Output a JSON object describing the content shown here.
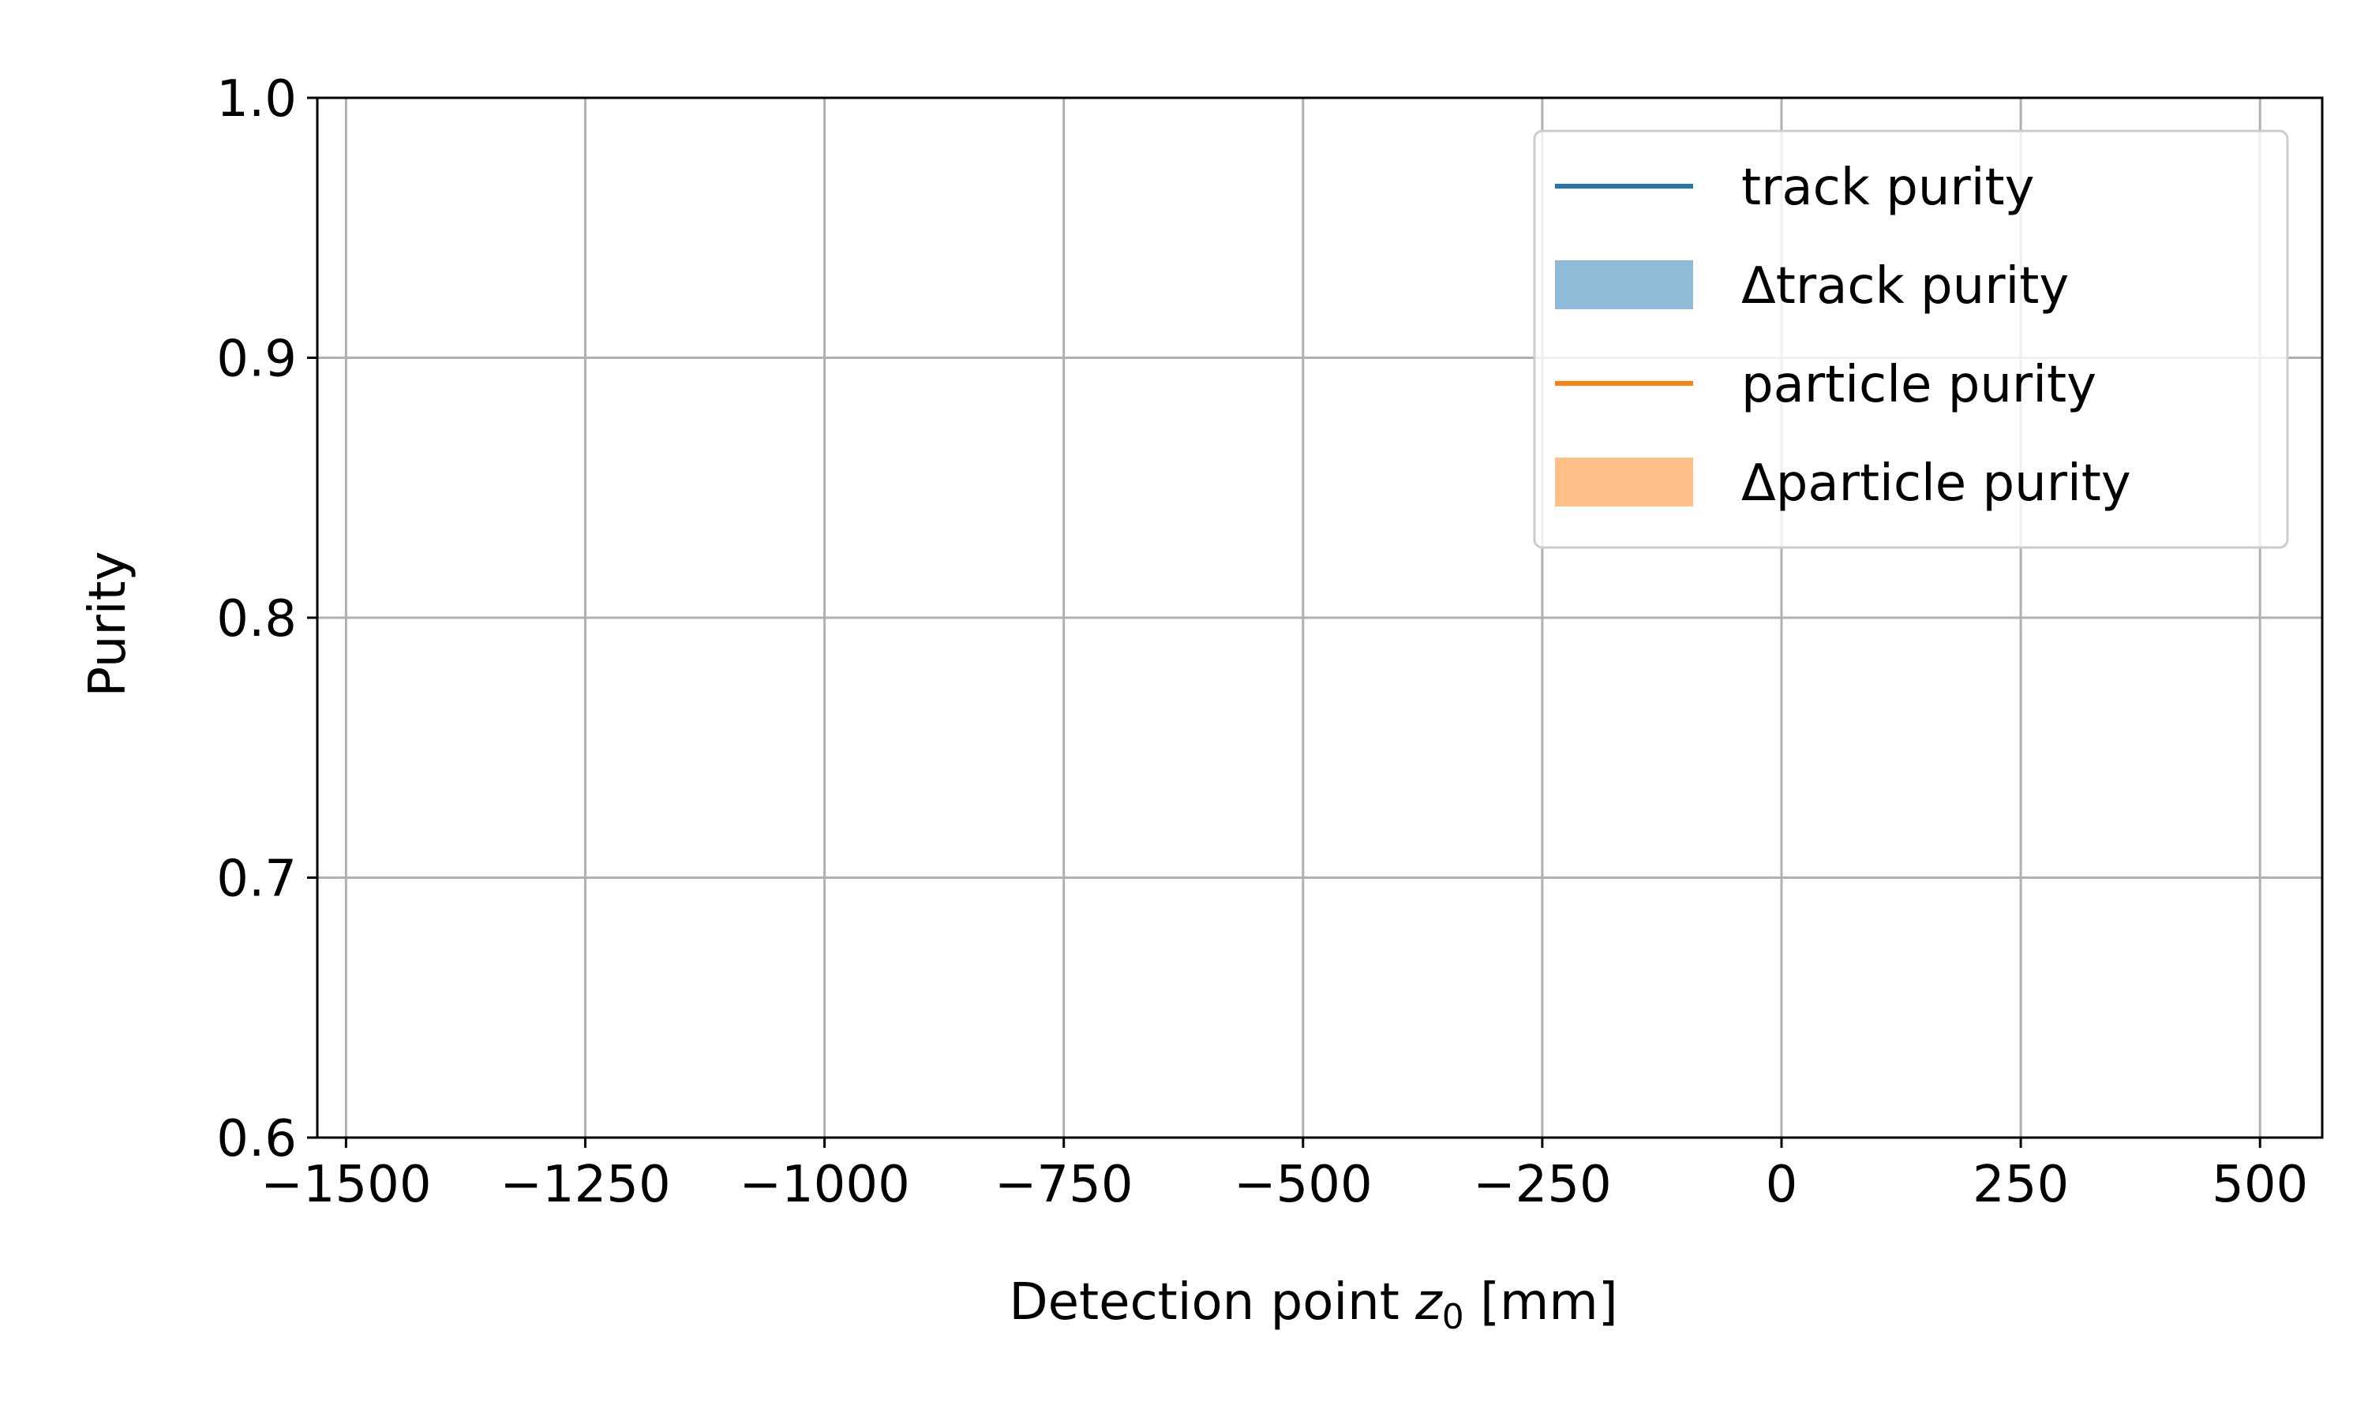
{
  "chart_data": {
    "type": "line",
    "title": "",
    "xlabel_main": "Detection point ",
    "xlabel_var": "z",
    "xlabel_sub": "0",
    "xlabel_unit": " [mm]",
    "ylabel": "Purity",
    "xlim": [
      -1530,
      565
    ],
    "ylim": [
      0.6,
      1.0
    ],
    "x_ticks": [
      -1500,
      -1250,
      -1000,
      -750,
      -500,
      -250,
      0,
      250,
      500
    ],
    "x_tick_labels": [
      "−1500",
      "−1250",
      "−1000",
      "−750",
      "−500",
      "−250",
      "0",
      "250",
      "500"
    ],
    "y_ticks": [
      0.6,
      0.7,
      0.8,
      0.9,
      1.0
    ],
    "y_tick_labels": [
      "0.6",
      "0.7",
      "0.8",
      "0.9",
      "1.0"
    ],
    "grid": true,
    "legend_position": "top-right",
    "series": [
      {
        "name": "track purity",
        "kind": "line",
        "color": "#1f77b4",
        "x": [],
        "y": []
      },
      {
        "name": "Δtrack purity",
        "kind": "band",
        "color": "#8fbbd9",
        "x": [],
        "y_low": [],
        "y_high": []
      },
      {
        "name": "particle purity",
        "kind": "line",
        "color": "#ff7f0e",
        "x": [],
        "y": []
      },
      {
        "name": "Δparticle purity",
        "kind": "band",
        "color": "#ffbf86",
        "x": [],
        "y_low": [],
        "y_high": []
      }
    ]
  }
}
